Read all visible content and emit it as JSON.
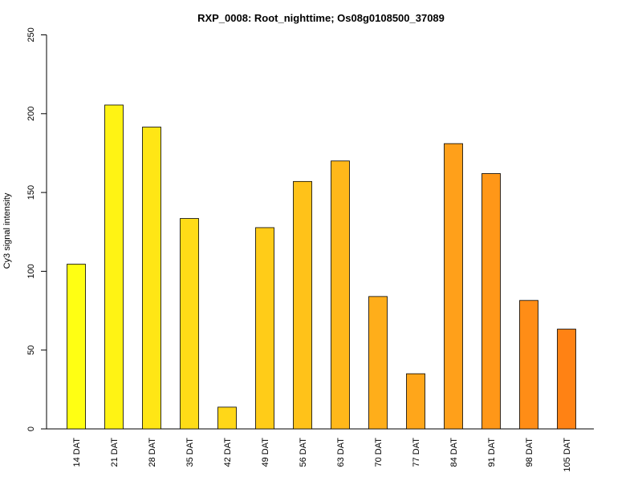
{
  "chart_data": {
    "type": "bar",
    "title": "RXP_0008: Root_nighttime; Os08g0108500_37089",
    "xlabel": "",
    "ylabel": "Cy3 signal intensity",
    "ylim": [
      0,
      250
    ],
    "yticks": [
      "0",
      "50",
      "100",
      "150",
      "200",
      "250"
    ],
    "categories": [
      "14 DAT",
      "21 DAT",
      "28 DAT",
      "35 DAT",
      "42 DAT",
      "49 DAT",
      "56 DAT",
      "63 DAT",
      "70 DAT",
      "77 DAT",
      "84 DAT",
      "91 DAT",
      "98 DAT",
      "105 DAT"
    ],
    "values": [
      104.5,
      205.5,
      191.5,
      133.5,
      13.8,
      127.7,
      157.0,
      170.0,
      84.0,
      35.0,
      181.0,
      162.0,
      81.5,
      63.3
    ],
    "colors": [
      "#ffff13",
      "#fff314",
      "#ffe615",
      "#ffdc17",
      "#ffd718",
      "#ffcc18",
      "#ffc219",
      "#ffb81a",
      "#ffae1a",
      "#ffa61a",
      "#ffa01a",
      "#ff9718",
      "#ff8d16",
      "#ff8214"
    ],
    "grid": false,
    "legend": "none"
  }
}
